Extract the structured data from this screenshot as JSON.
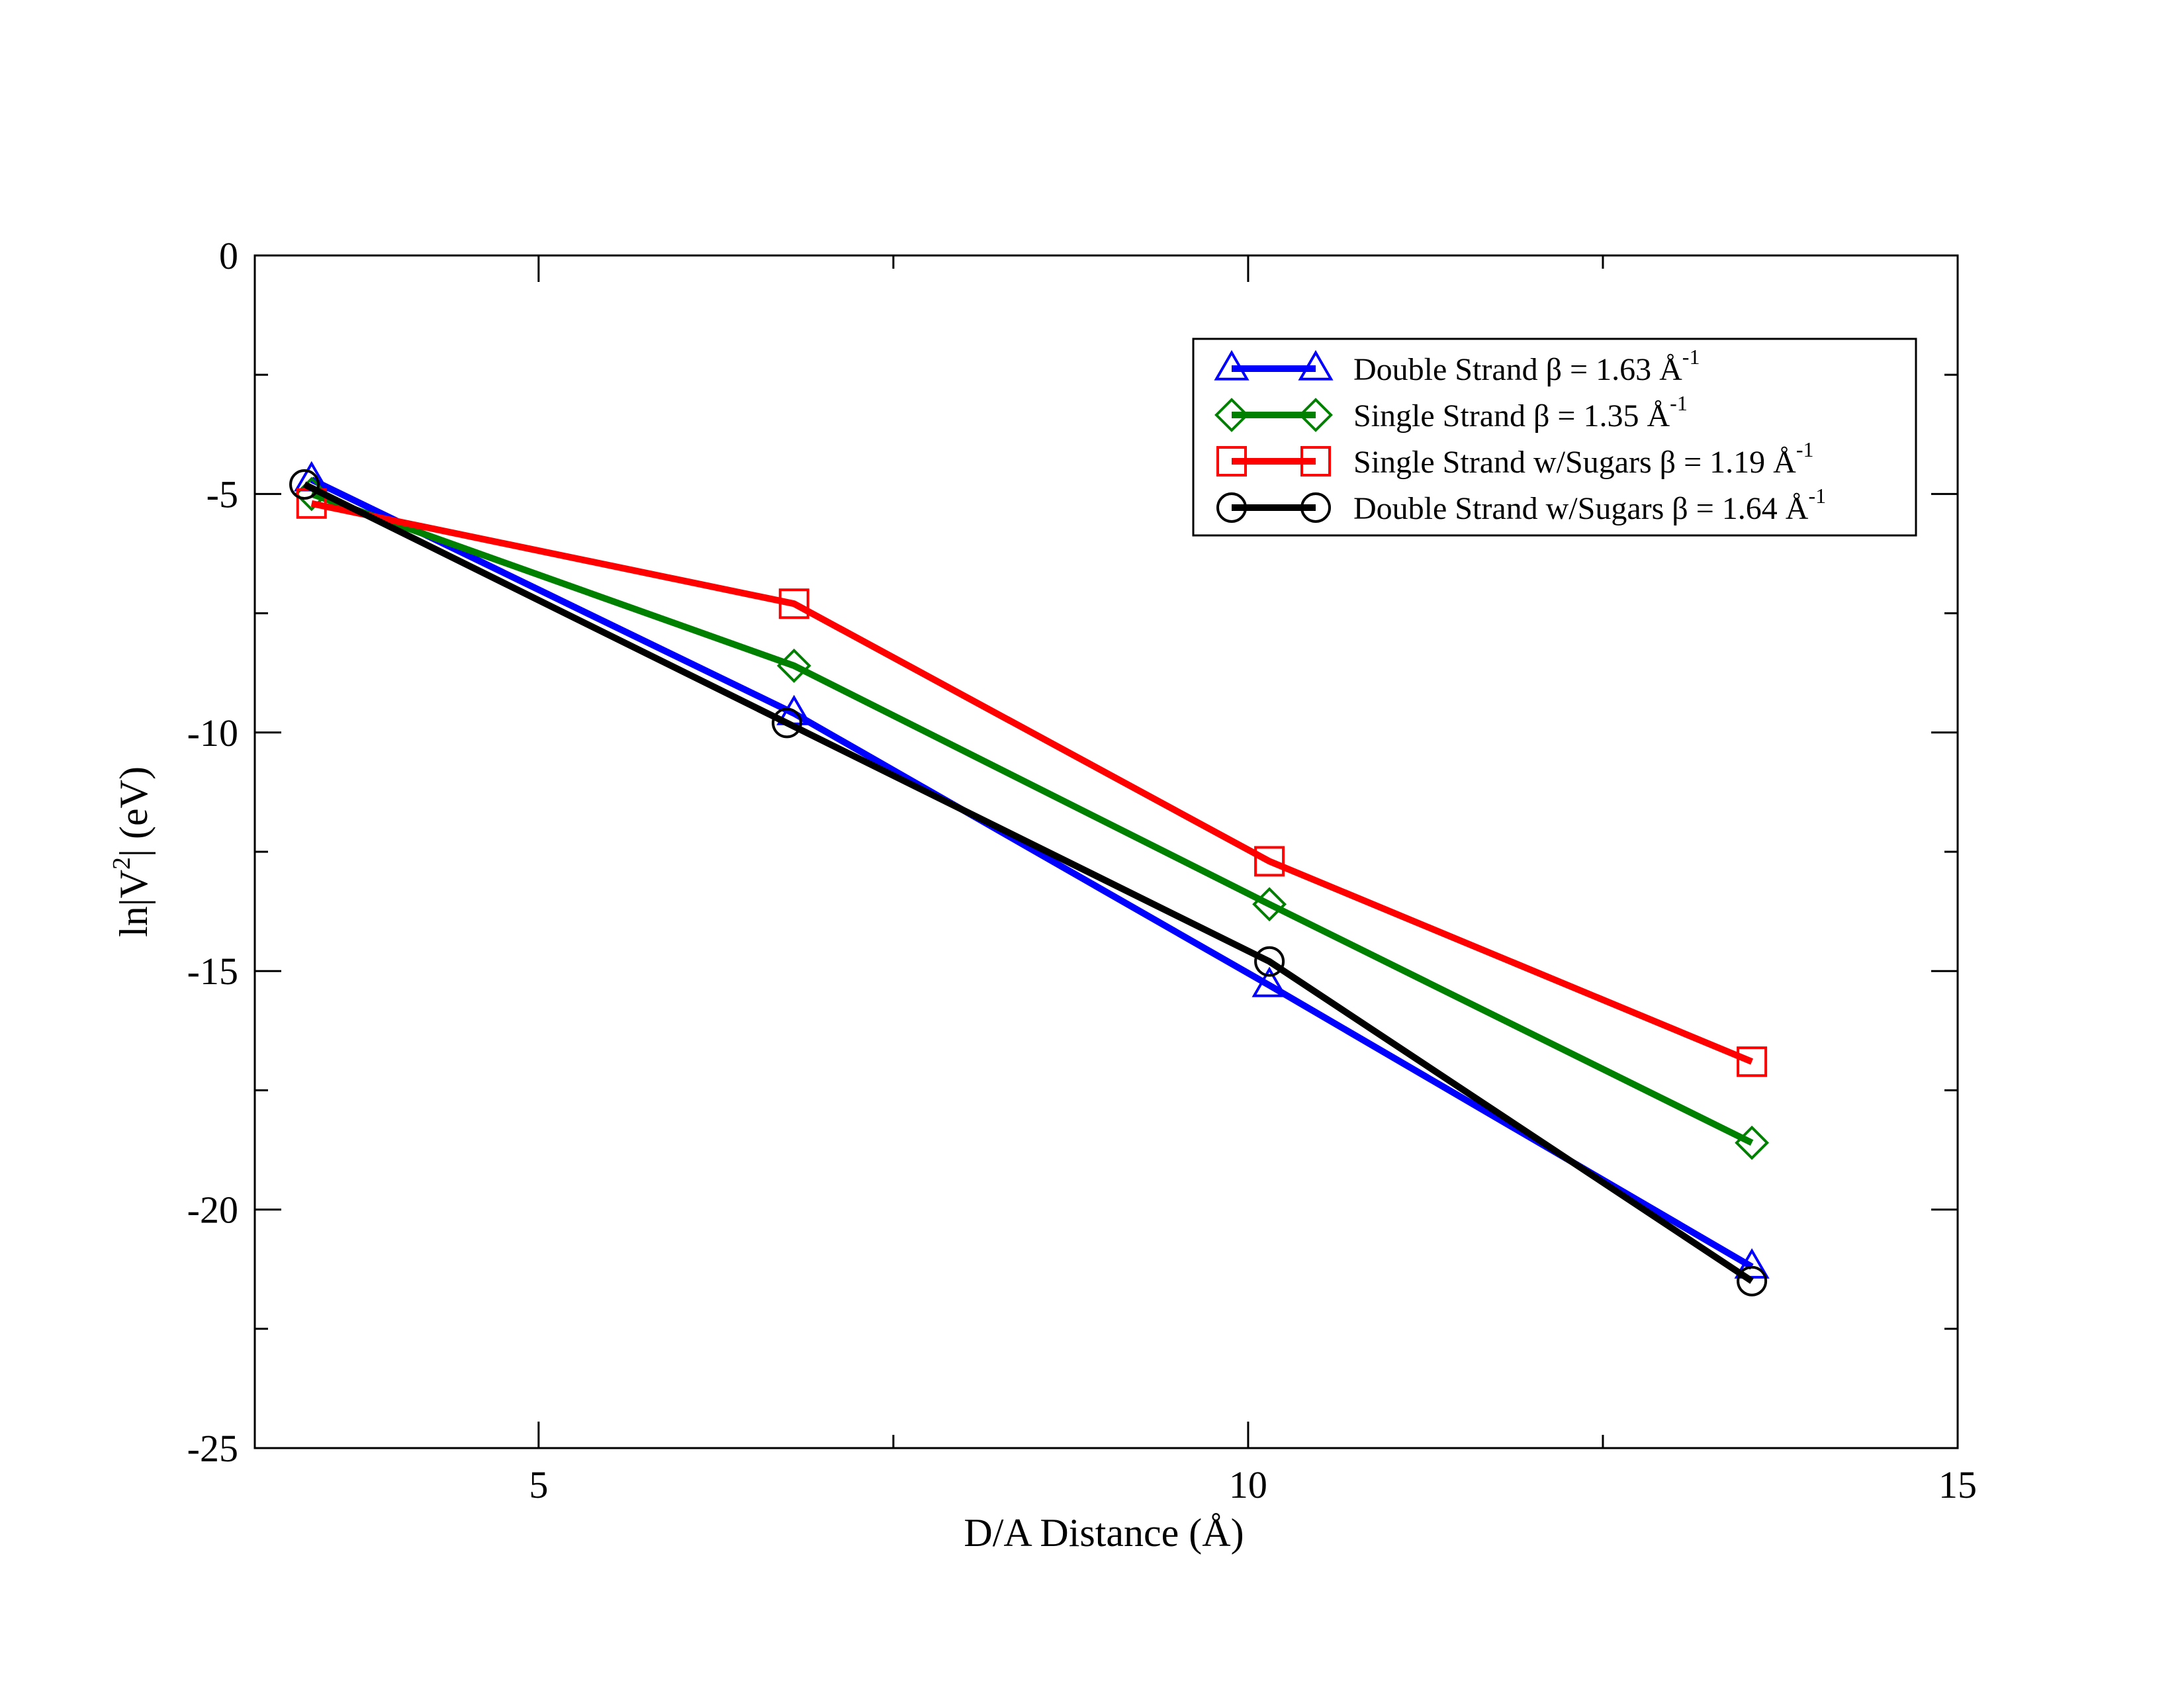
{
  "chart_data": {
    "type": "line",
    "title": "",
    "xlabel": "D/A Distance (Å)",
    "ylabel": "ln|V²| (eV)",
    "ylabel_parts": {
      "main": "ln|V",
      "sup": "2",
      "tail": "| (eV)"
    },
    "xlim": [
      3.0,
      15.0
    ],
    "ylim": [
      -25,
      0
    ],
    "x_major_ticks": [
      5,
      10,
      15
    ],
    "x_minor_ticks": [
      7.5,
      12.5
    ],
    "x_tick_labels": [
      "5",
      "10",
      "15"
    ],
    "y_major_ticks": [
      0,
      -5,
      -10,
      -15,
      -20,
      -25
    ],
    "y_minor_ticks": [
      -2.5,
      -7.5,
      -12.5,
      -17.5,
      -22.5
    ],
    "y_tick_labels": [
      "0",
      "-5",
      "-10",
      "-15",
      "-20",
      "-25"
    ],
    "grid": false,
    "legend_position": "top-right",
    "series": [
      {
        "name": "Double Strand",
        "legend_label": "Double Strand β = 1.63 Å",
        "legend_sup": "-1",
        "color": "#0000ff",
        "marker": "triangle",
        "x": [
          3.4,
          6.8,
          10.15,
          13.55
        ],
        "y": [
          -4.7,
          -9.6,
          -15.3,
          -21.2
        ]
      },
      {
        "name": "Single Strand",
        "legend_label": "Single Strand β = 1.35 Å",
        "legend_sup": "-1",
        "color": "#008000",
        "marker": "diamond",
        "x": [
          3.4,
          6.8,
          10.15,
          13.55
        ],
        "y": [
          -5.0,
          -8.6,
          -13.6,
          -18.6
        ]
      },
      {
        "name": "Single Strand w/Sugars",
        "legend_label": "Single Strand w/Sugars β = 1.19 Å",
        "legend_sup": "-1",
        "color": "#ff0000",
        "marker": "square",
        "x": [
          3.4,
          6.8,
          10.15,
          13.55
        ],
        "y": [
          -5.2,
          -7.3,
          -12.7,
          -16.9
        ]
      },
      {
        "name": "Double Strand w/Sugars",
        "legend_label": "Double Strand w/Sugars β = 1.64 Å",
        "legend_sup": "-1",
        "color": "#000000",
        "marker": "circle",
        "x": [
          3.35,
          6.75,
          10.15,
          13.55
        ],
        "y": [
          -4.8,
          -9.8,
          -14.8,
          -21.5
        ]
      }
    ]
  }
}
